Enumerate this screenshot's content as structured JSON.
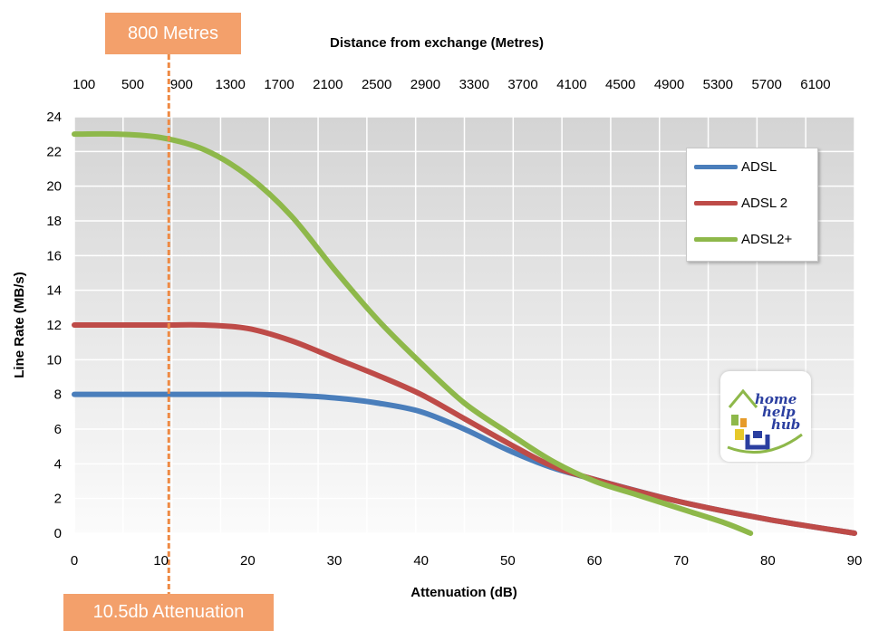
{
  "chart_data": {
    "type": "line",
    "top_axis_title": "Distance from exchange (Metres)",
    "top_axis_ticks": [
      "100",
      "500",
      "900",
      "1300",
      "1700",
      "2100",
      "2500",
      "2900",
      "3300",
      "3700",
      "4100",
      "4500",
      "4900",
      "5300",
      "5700",
      "6100"
    ],
    "xlabel": "Attenuation (dB)",
    "ylabel": "Line Rate (MB/s)",
    "xlim": [
      0,
      90
    ],
    "ylim": [
      0,
      24
    ],
    "x_ticks": [
      0,
      10,
      20,
      30,
      40,
      50,
      60,
      70,
      80,
      90
    ],
    "y_ticks": [
      0,
      2,
      4,
      6,
      8,
      10,
      12,
      14,
      16,
      18,
      20,
      22,
      24
    ],
    "grid": true,
    "legend_position": "top-right",
    "series": [
      {
        "name": "ADSL",
        "color": "#4a7ebb",
        "x": [
          0,
          10,
          20,
          25,
          30,
          35,
          40,
          45,
          50,
          55,
          60,
          70,
          80,
          90
        ],
        "y": [
          8,
          8,
          8,
          7.95,
          7.8,
          7.5,
          7,
          6,
          4.8,
          3.8,
          3.1,
          1.8,
          0.8,
          0
        ]
      },
      {
        "name": "ADSL 2",
        "color": "#be4b48",
        "x": [
          0,
          10,
          15,
          20,
          25,
          30,
          35,
          40,
          45,
          50,
          55,
          60,
          70,
          80,
          90
        ],
        "y": [
          12,
          12,
          12,
          11.8,
          11.1,
          10.1,
          9.1,
          8,
          6.6,
          5.2,
          3.9,
          3.1,
          1.8,
          0.8,
          0
        ]
      },
      {
        "name": "ADSL2+",
        "color": "#8eb84a",
        "x": [
          0,
          5,
          10,
          15,
          20,
          25,
          30,
          35,
          40,
          45,
          50,
          55,
          60,
          65,
          70,
          75,
          78
        ],
        "y": [
          23,
          23,
          22.8,
          22.1,
          20.6,
          18.3,
          15.2,
          12.3,
          9.8,
          7.5,
          5.8,
          4.2,
          3,
          2.2,
          1.4,
          0.6,
          0
        ]
      }
    ],
    "annotations": [
      {
        "label_top": "800 Metres",
        "label_bottom": "10.5db Attenuation",
        "x": 10.9
      }
    ]
  },
  "callouts": {
    "top": "800 Metres",
    "bottom": "10.5db Attenuation"
  },
  "logo": {
    "lines": [
      "home",
      "help",
      "hub"
    ]
  }
}
